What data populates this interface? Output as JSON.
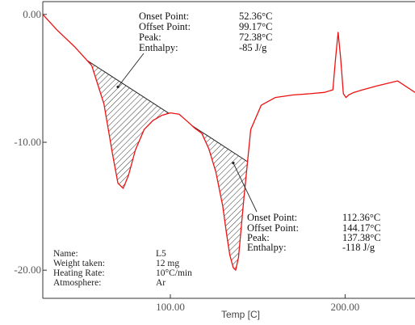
{
  "chart_data": {
    "type": "line",
    "xlabel": "Temp  [C]",
    "ylabel": "",
    "xlim": [
      27,
      240
    ],
    "ylim": [
      -22.2,
      1.0
    ],
    "x_ticks": [
      {
        "value": 100,
        "label": "100.00"
      },
      {
        "value": 200,
        "label": "200.00"
      }
    ],
    "y_ticks": [
      {
        "value": 0,
        "label": "0.00"
      },
      {
        "value": -10,
        "label": "-10.00"
      },
      {
        "value": -20,
        "label": "-20.00"
      }
    ],
    "grid": false,
    "line_color": "#ee1111",
    "series": [
      {
        "x": [
          27,
          35,
          45,
          55,
          62,
          67,
          70,
          73,
          76,
          80,
          85,
          90,
          95,
          100,
          105,
          110,
          114,
          118,
          122,
          126,
          130,
          132,
          134,
          136,
          137.38,
          139,
          142,
          146,
          152,
          160,
          170,
          180,
          188,
          193,
          194.5,
          196,
          197.5,
          199,
          200.5,
          202,
          205,
          210,
          218,
          224,
          230,
          240
        ],
        "y": [
          0.0,
          -1.2,
          -2.5,
          -4.0,
          -7.0,
          -11.0,
          -13.2,
          -13.6,
          -12.6,
          -10.6,
          -9.0,
          -8.3,
          -7.9,
          -7.7,
          -7.8,
          -8.4,
          -8.9,
          -9.3,
          -10.5,
          -12.3,
          -15.0,
          -17.0,
          -18.8,
          -19.8,
          -20.0,
          -19.0,
          -14.5,
          -9.0,
          -7.1,
          -6.5,
          -6.3,
          -6.2,
          -6.1,
          -5.9,
          -3.5,
          -1.4,
          -3.5,
          -6.2,
          -6.5,
          -6.3,
          -6.1,
          -5.9,
          -5.6,
          -5.4,
          -5.2,
          -6.1
        ]
      }
    ],
    "peak1": {
      "onset_x": 52.36,
      "offset_x": 99.17
    },
    "peak2": {
      "onset_x": 112.36,
      "offset_x": 144.17
    },
    "annotations": [
      {
        "rows": [
          {
            "label": "Onset Point:",
            "value": "52.36°C"
          },
          {
            "label": "Offset Point:",
            "value": "99.17°C"
          },
          {
            "label": "Peak:",
            "value": "72.38°C"
          },
          {
            "label": "Enthalpy:",
            "value": "-85 J/g"
          }
        ]
      },
      {
        "rows": [
          {
            "label": "Onset Point:",
            "value": "112.36°C"
          },
          {
            "label": "Offset Point:",
            "value": "144.17°C"
          },
          {
            "label": "Peak:",
            "value": "137.38°C"
          },
          {
            "label": "Enthalpy:",
            "value": "-118 J/g"
          }
        ]
      }
    ]
  },
  "sample_info": [
    {
      "label": "Name:",
      "value": "L5"
    },
    {
      "label": "Weight taken:",
      "value": "12 mg"
    },
    {
      "label": "Heating Rate:",
      "value": "10°C/min"
    },
    {
      "label": "Atmosphere:",
      "value": "Ar"
    }
  ]
}
